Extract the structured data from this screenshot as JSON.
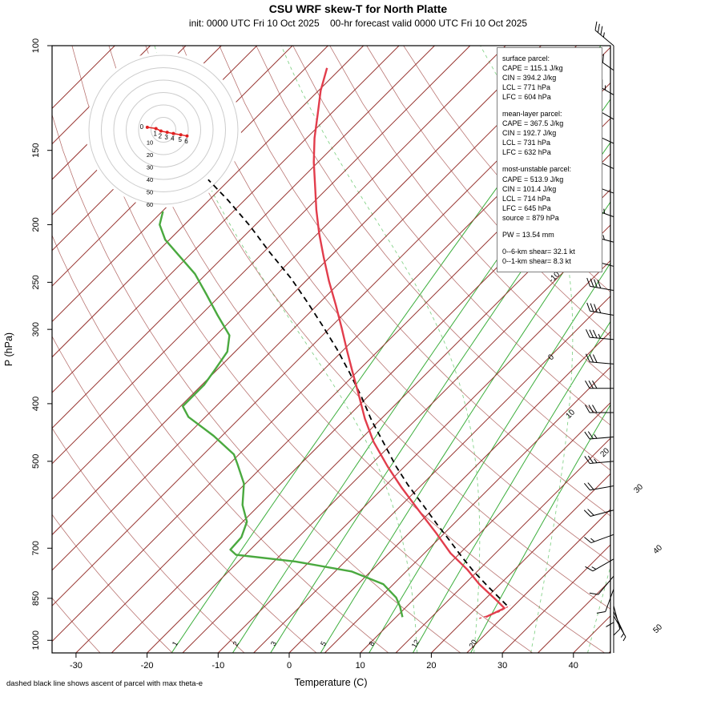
{
  "header": {
    "title": "CSU WRF skew-T for North Platte",
    "subtitle": "init: 0000 UTC Fri 10 Oct 2025    00-hr forecast valid 0000 UTC Fri 10 Oct 2025"
  },
  "axes": {
    "y_label": "P (hPa)",
    "x_label": "Temperature (C)"
  },
  "footer_note": "dashed black line shows ascent of parcel with max theta-e",
  "info_box": {
    "blocks": [
      {
        "lines": [
          "surface parcel:",
          "CAPE = 115.1 J/kg",
          "CIN = 394.2 J/kg",
          "LCL = 771 hPa",
          "LFC = 604 hPa"
        ]
      },
      {
        "lines": [
          "mean-layer parcel:",
          "CAPE = 367.5 J/kg",
          "CIN = 192.7 J/kg",
          "LCL = 731 hPa",
          "LFC = 632 hPa"
        ]
      },
      {
        "lines": [
          "most-unstable parcel:",
          "CAPE = 513.9 J/kg",
          "CIN = 101.4 J/kg",
          "LCL = 714 hPa",
          "LFC = 645 hPa",
          "source = 879 hPa"
        ]
      },
      {
        "lines": [
          "PW =  13.54 mm"
        ]
      },
      {
        "lines": [
          "0--6-km shear= 32.1 kt",
          "0--1-km shear= 8.3 kt"
        ]
      }
    ]
  },
  "chart_data": {
    "type": "line",
    "title": "CSU WRF skew-T for North Platte",
    "xlabel": "Temperature (C)",
    "ylabel": "P (hPa)",
    "pressure_range": [
      100,
      1050
    ],
    "x_range": [
      -33,
      45
    ],
    "pressure_ticks": [
      100,
      150,
      200,
      250,
      300,
      400,
      500,
      700,
      850,
      1000
    ],
    "temp_ticks": [
      -30,
      -20,
      -10,
      0,
      10,
      20,
      30,
      40
    ],
    "isotherm_step": 5,
    "isotherm_labels": [
      -10,
      0,
      10,
      20,
      30,
      40,
      50
    ],
    "mixing_ratio_lines": [
      1,
      2,
      3,
      5,
      8,
      12,
      20
    ],
    "moist_adiabat_surface_temps": [
      18,
      26,
      34,
      42
    ],
    "temperature_profile": [
      [
        914,
        22.6
      ],
      [
        883,
        24.0
      ],
      [
        858,
        21.9
      ],
      [
        805,
        17.1
      ],
      [
        761,
        13.4
      ],
      [
        714,
        8.7
      ],
      [
        660,
        3.8
      ],
      [
        605,
        -1.8
      ],
      [
        554,
        -7.4
      ],
      [
        510,
        -12.4
      ],
      [
        464,
        -17.8
      ],
      [
        424,
        -22.3
      ],
      [
        386,
        -26.6
      ],
      [
        354,
        -30.6
      ],
      [
        325,
        -34.5
      ],
      [
        298,
        -38.4
      ],
      [
        273,
        -42.4
      ],
      [
        249,
        -46.7
      ],
      [
        227,
        -50.8
      ],
      [
        207,
        -54.8
      ],
      [
        189,
        -58.5
      ],
      [
        172,
        -62.1
      ],
      [
        157,
        -65.6
      ],
      [
        143,
        -68.9
      ],
      [
        130,
        -71.9
      ],
      [
        119,
        -74.7
      ],
      [
        109,
        -77.0
      ]
    ],
    "dewpoint_profile": [
      [
        914,
        10.9
      ],
      [
        878,
        9.1
      ],
      [
        848,
        7.3
      ],
      [
        805,
        3.6
      ],
      [
        766,
        -2.7
      ],
      [
        737,
        -12.0
      ],
      [
        718,
        -21.3
      ],
      [
        704,
        -22.8
      ],
      [
        671,
        -23.0
      ],
      [
        632,
        -24.4
      ],
      [
        592,
        -27.4
      ],
      [
        545,
        -30.2
      ],
      [
        505,
        -33.9
      ],
      [
        487,
        -35.7
      ],
      [
        453,
        -41.2
      ],
      [
        421,
        -47.4
      ],
      [
        404,
        -49.7
      ],
      [
        372,
        -49.7
      ],
      [
        351,
        -50.3
      ],
      [
        327,
        -51.1
      ],
      [
        307,
        -53.1
      ],
      [
        284,
        -57.6
      ],
      [
        262,
        -62.1
      ],
      [
        242,
        -66.6
      ],
      [
        212,
        -75.6
      ],
      [
        200,
        -78.5
      ],
      [
        190,
        -79.9
      ]
    ],
    "parcel_ascent": [
      [
        873,
        23.9
      ],
      [
        815,
        18.9
      ],
      [
        766,
        14.5
      ],
      [
        723,
        10.7
      ],
      [
        681,
        6.9
      ],
      [
        636,
        2.5
      ],
      [
        592,
        -2.0
      ],
      [
        549,
        -6.8
      ],
      [
        510,
        -11.2
      ],
      [
        467,
        -16.1
      ],
      [
        427,
        -21.1
      ],
      [
        390,
        -25.8
      ],
      [
        355,
        -30.9
      ],
      [
        324,
        -36.0
      ],
      [
        296,
        -41.3
      ],
      [
        270,
        -46.8
      ],
      [
        246,
        -52.5
      ],
      [
        223,
        -59.0
      ],
      [
        201,
        -65.6
      ],
      [
        182,
        -72.3
      ],
      [
        168,
        -78.0
      ]
    ],
    "surface_parcel_stub": [
      [
        919,
        21.9
      ],
      [
        895,
        23.8
      ],
      [
        873,
        24.4
      ]
    ],
    "wind_barbs": [
      {
        "p": 100,
        "dir": 310,
        "spd": 35
      },
      {
        "p": 110,
        "dir": 305,
        "spd": 40
      },
      {
        "p": 121,
        "dir": 300,
        "spd": 45
      },
      {
        "p": 133,
        "dir": 300,
        "spd": 50
      },
      {
        "p": 146,
        "dir": 295,
        "spd": 50
      },
      {
        "p": 161,
        "dir": 295,
        "spd": 55
      },
      {
        "p": 177,
        "dir": 290,
        "spd": 50
      },
      {
        "p": 194,
        "dir": 290,
        "spd": 45
      },
      {
        "p": 214,
        "dir": 285,
        "spd": 45
      },
      {
        "p": 235,
        "dir": 285,
        "spd": 40
      },
      {
        "p": 258,
        "dir": 280,
        "spd": 40
      },
      {
        "p": 284,
        "dir": 280,
        "spd": 35
      },
      {
        "p": 312,
        "dir": 275,
        "spd": 35
      },
      {
        "p": 343,
        "dir": 275,
        "spd": 30
      },
      {
        "p": 377,
        "dir": 270,
        "spd": 30
      },
      {
        "p": 414,
        "dir": 270,
        "spd": 30
      },
      {
        "p": 455,
        "dir": 265,
        "spd": 25
      },
      {
        "p": 500,
        "dir": 265,
        "spd": 25
      },
      {
        "p": 550,
        "dir": 260,
        "spd": 20
      },
      {
        "p": 604,
        "dir": 255,
        "spd": 20
      },
      {
        "p": 664,
        "dir": 250,
        "spd": 15
      },
      {
        "p": 730,
        "dir": 240,
        "spd": 15
      },
      {
        "p": 780,
        "dir": 220,
        "spd": 10
      },
      {
        "p": 820,
        "dir": 200,
        "spd": 10
      },
      {
        "p": 850,
        "dir": 180,
        "spd": 10
      },
      {
        "p": 875,
        "dir": 165,
        "spd": 10
      },
      {
        "p": 895,
        "dir": 155,
        "spd": 8
      },
      {
        "p": 910,
        "dir": 150,
        "spd": 8
      }
    ],
    "hodograph": {
      "ring_step_kt": 10,
      "rings": [
        10,
        20,
        30,
        40,
        50,
        60
      ],
      "trace": [
        {
          "km": 0,
          "u": -13,
          "v": 2
        },
        {
          "km": 1,
          "u": -6,
          "v": 1
        },
        {
          "km": 2,
          "u": -2,
          "v": -1
        },
        {
          "km": 3,
          "u": 3,
          "v": -2
        },
        {
          "km": 4,
          "u": 8,
          "v": -3
        },
        {
          "km": 5,
          "u": 14,
          "v": -4
        },
        {
          "km": 6,
          "u": 19,
          "v": -5
        }
      ]
    },
    "colors": {
      "temperature": "#e23d4c",
      "dewpoint": "#4aa93f",
      "parcel": "#000000",
      "isotherm": "#973430",
      "dry_adiabat": "#a85450",
      "mixing_ratio": "#3cae3c",
      "moist_adiabat": "#86d38a",
      "barb": "#000000",
      "hodo_ring": "#cccccc",
      "hodo_trace": "#e02020",
      "label_green": "#2f9e2f",
      "label_red": "#a03b2e"
    }
  }
}
